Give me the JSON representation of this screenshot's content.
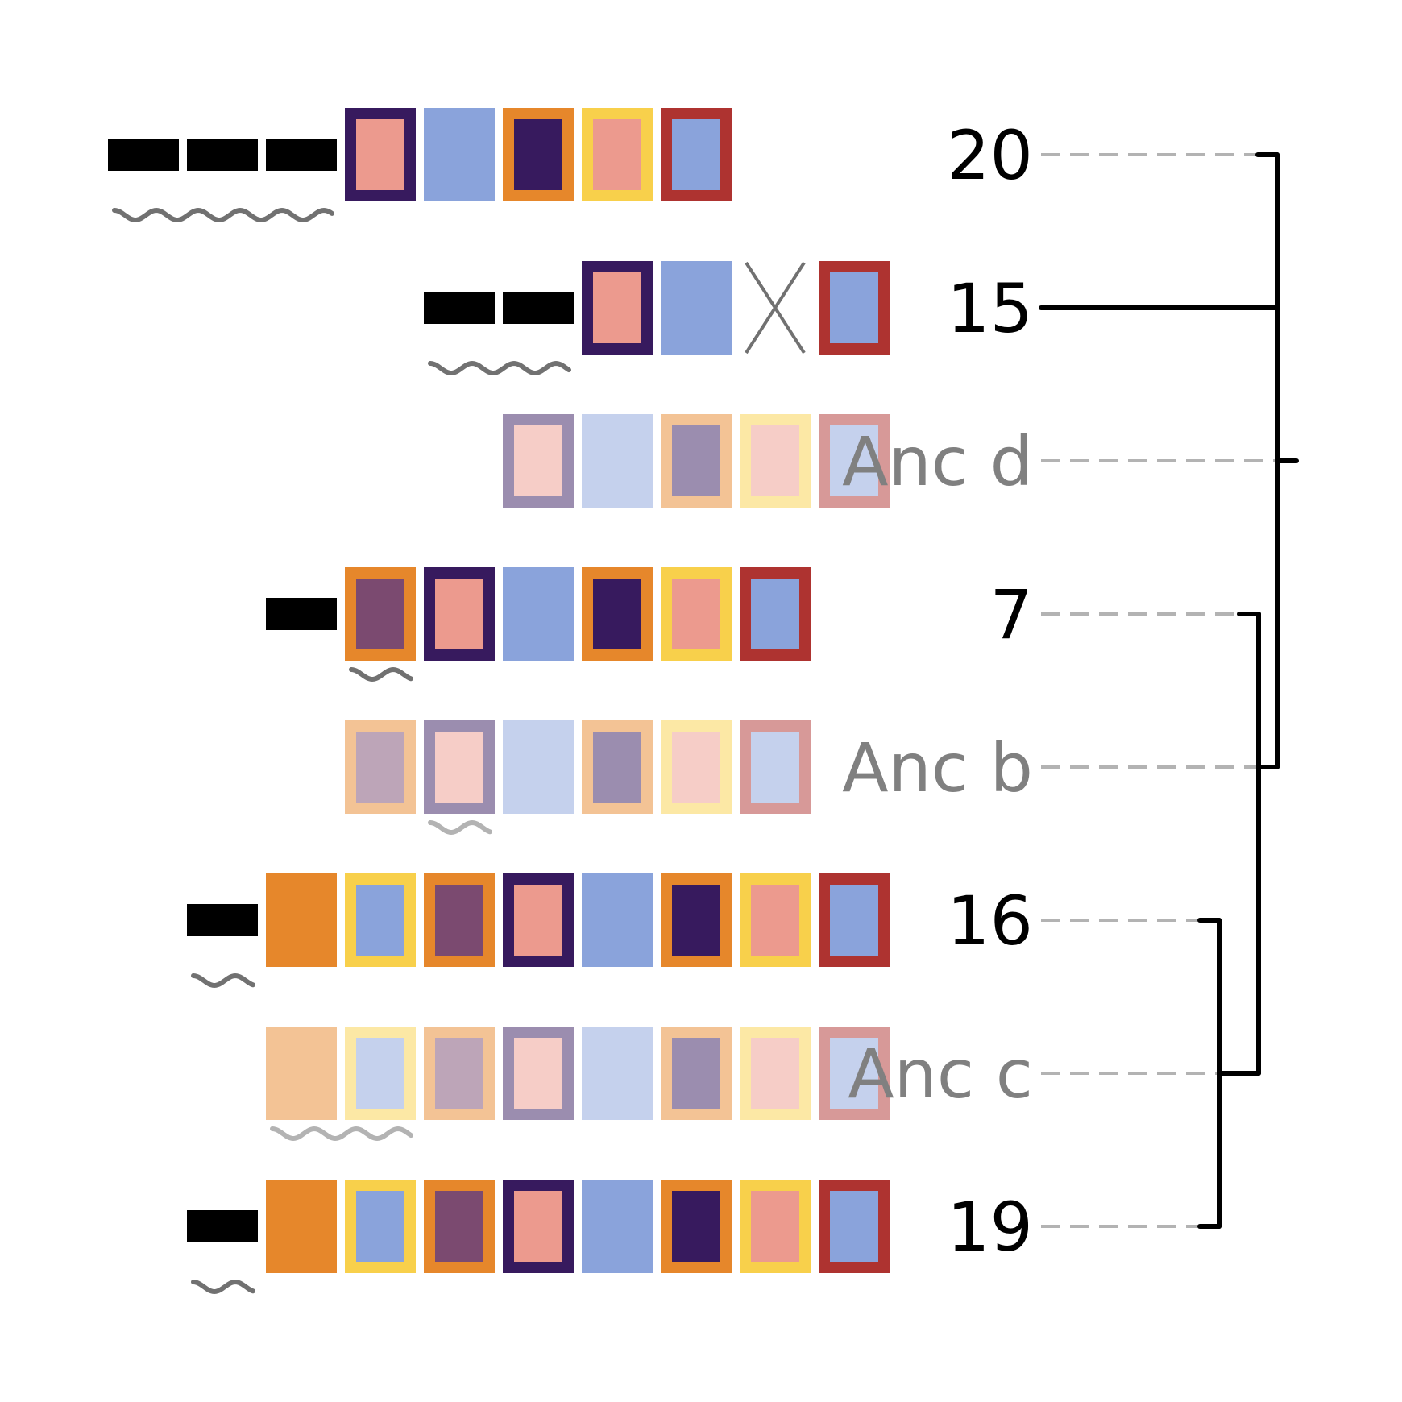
{
  "colors": {
    "orange": "#E6872B",
    "purple": "#371A5E",
    "pink": "#EC9A8E",
    "blue": "#8AA3DB",
    "yellow": "#F8D04B",
    "red": "#AE3330",
    "plum": "#7B4A70",
    "black": "#000000",
    "grey": "#717171",
    "lightgrey": "#B3B3B3"
  },
  "rows": [
    {
      "label": "20",
      "ancestral": false,
      "cells": [
        {
          "type": "bar"
        },
        {
          "type": "bar"
        },
        {
          "type": "bar"
        },
        {
          "type": "box",
          "border": "purple",
          "fill": "pink"
        },
        {
          "type": "box",
          "border": "blue",
          "fill": "blue"
        },
        {
          "type": "box",
          "border": "orange",
          "fill": "purple"
        },
        {
          "type": "box",
          "border": "yellow",
          "fill": "pink"
        },
        {
          "type": "box",
          "border": "red",
          "fill": "blue"
        }
      ],
      "wave": [
        0,
        2
      ]
    },
    {
      "label": "15",
      "ancestral": false,
      "cells": [
        null,
        null,
        null,
        null,
        {
          "type": "bar"
        },
        {
          "type": "bar"
        },
        {
          "type": "box",
          "border": "purple",
          "fill": "pink"
        },
        {
          "type": "box",
          "border": "blue",
          "fill": "blue"
        },
        {
          "type": "cross"
        },
        {
          "type": "box",
          "border": "red",
          "fill": "blue"
        }
      ],
      "wave": [
        4,
        5
      ]
    },
    {
      "label": "Anc d",
      "ancestral": true,
      "cells": [
        null,
        null,
        null,
        null,
        null,
        {
          "type": "box",
          "border": "purple",
          "fill": "pink"
        },
        {
          "type": "box",
          "border": "blue",
          "fill": "blue"
        },
        {
          "type": "box",
          "border": "orange",
          "fill": "purple"
        },
        {
          "type": "box",
          "border": "yellow",
          "fill": "pink"
        },
        {
          "type": "box",
          "border": "red",
          "fill": "blue"
        }
      ],
      "wave": null
    },
    {
      "label": "7",
      "ancestral": false,
      "cells": [
        null,
        null,
        {
          "type": "bar"
        },
        {
          "type": "box",
          "border": "orange",
          "fill": "plum"
        },
        {
          "type": "box",
          "border": "purple",
          "fill": "pink"
        },
        {
          "type": "box",
          "border": "blue",
          "fill": "blue"
        },
        {
          "type": "box",
          "border": "orange",
          "fill": "purple"
        },
        {
          "type": "box",
          "border": "yellow",
          "fill": "pink"
        },
        {
          "type": "box",
          "border": "red",
          "fill": "blue"
        }
      ],
      "wave": [
        3,
        3
      ]
    },
    {
      "label": "Anc b",
      "ancestral": true,
      "cells": [
        null,
        null,
        null,
        {
          "type": "box",
          "border": "orange",
          "fill": "plum"
        },
        {
          "type": "box",
          "border": "purple",
          "fill": "pink"
        },
        {
          "type": "box",
          "border": "blue",
          "fill": "blue"
        },
        {
          "type": "box",
          "border": "orange",
          "fill": "purple"
        },
        {
          "type": "box",
          "border": "yellow",
          "fill": "pink"
        },
        {
          "type": "box",
          "border": "red",
          "fill": "blue"
        }
      ],
      "wave": [
        4,
        4
      ]
    },
    {
      "label": "16",
      "ancestral": false,
      "cells": [
        null,
        {
          "type": "bar"
        },
        {
          "type": "box",
          "border": "orange",
          "fill": "orange"
        },
        {
          "type": "box",
          "border": "yellow",
          "fill": "blue"
        },
        {
          "type": "box",
          "border": "orange",
          "fill": "plum"
        },
        {
          "type": "box",
          "border": "purple",
          "fill": "pink"
        },
        {
          "type": "box",
          "border": "blue",
          "fill": "blue"
        },
        {
          "type": "box",
          "border": "orange",
          "fill": "purple"
        },
        {
          "type": "box",
          "border": "yellow",
          "fill": "pink"
        },
        {
          "type": "box",
          "border": "red",
          "fill": "blue"
        }
      ],
      "wave": [
        1,
        1
      ]
    },
    {
      "label": "Anc c",
      "ancestral": true,
      "cells": [
        null,
        null,
        {
          "type": "box",
          "border": "orange",
          "fill": "orange"
        },
        {
          "type": "box",
          "border": "yellow",
          "fill": "blue"
        },
        {
          "type": "box",
          "border": "orange",
          "fill": "plum"
        },
        {
          "type": "box",
          "border": "purple",
          "fill": "pink"
        },
        {
          "type": "box",
          "border": "blue",
          "fill": "blue"
        },
        {
          "type": "box",
          "border": "orange",
          "fill": "purple"
        },
        {
          "type": "box",
          "border": "yellow",
          "fill": "pink"
        },
        {
          "type": "box",
          "border": "red",
          "fill": "blue"
        }
      ],
      "wave": [
        2,
        3
      ]
    },
    {
      "label": "19",
      "ancestral": false,
      "cells": [
        null,
        {
          "type": "bar"
        },
        {
          "type": "box",
          "border": "orange",
          "fill": "orange"
        },
        {
          "type": "box",
          "border": "yellow",
          "fill": "blue"
        },
        {
          "type": "box",
          "border": "orange",
          "fill": "plum"
        },
        {
          "type": "box",
          "border": "purple",
          "fill": "pink"
        },
        {
          "type": "box",
          "border": "blue",
          "fill": "blue"
        },
        {
          "type": "box",
          "border": "orange",
          "fill": "purple"
        },
        {
          "type": "box",
          "border": "yellow",
          "fill": "pink"
        },
        {
          "type": "box",
          "border": "red",
          "fill": "blue"
        }
      ],
      "wave": [
        1,
        1
      ]
    }
  ],
  "tree": {
    "leaves": [
      "20",
      "15",
      "Anc d",
      "7",
      "Anc b",
      "16",
      "Anc c",
      "19"
    ],
    "clades": [
      {
        "children": [
          "16",
          "19"
        ],
        "node": "Anc c"
      },
      {
        "children": [
          "7",
          "Anc c"
        ],
        "node": "Anc b"
      },
      {
        "children": [
          "20",
          "15",
          "Anc b"
        ],
        "node": "Anc d"
      }
    ]
  }
}
